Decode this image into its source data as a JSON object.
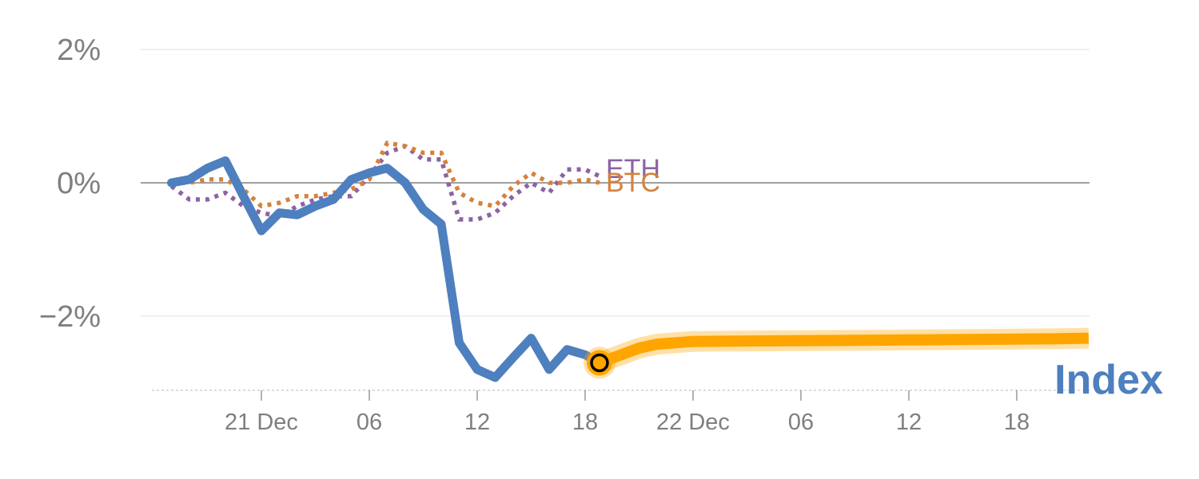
{
  "chart_data": {
    "type": "line",
    "title": "",
    "xlabel": "",
    "ylabel": "",
    "ylim": [
      -3.1,
      2.0
    ],
    "y_ticks": [
      {
        "value": 2,
        "label": "2%"
      },
      {
        "value": 0,
        "label": "0%"
      },
      {
        "value": -2,
        "label": "−2%"
      }
    ],
    "x_ticks": [
      {
        "value": 6,
        "label": "21 Dec"
      },
      {
        "value": 12,
        "label": "06"
      },
      {
        "value": 18,
        "label": "12"
      },
      {
        "value": 24,
        "label": "18"
      },
      {
        "value": 30,
        "label": "22 Dec"
      },
      {
        "value": 36,
        "label": "06"
      },
      {
        "value": 42,
        "label": "12"
      },
      {
        "value": 48,
        "label": "18"
      }
    ],
    "xlim": [
      0,
      52
    ],
    "grid": true,
    "series": [
      {
        "name": "Index",
        "color": "#4e7fbf",
        "style": "solid",
        "points": [
          [
            1,
            0.0
          ],
          [
            2,
            0.05
          ],
          [
            3,
            0.22
          ],
          [
            4,
            0.33
          ],
          [
            5,
            -0.2
          ],
          [
            6,
            -0.72
          ],
          [
            7,
            -0.45
          ],
          [
            8,
            -0.48
          ],
          [
            9,
            -0.35
          ],
          [
            10,
            -0.25
          ],
          [
            11,
            0.05
          ],
          [
            12,
            0.15
          ],
          [
            13,
            0.22
          ],
          [
            14,
            0.0
          ],
          [
            15,
            -0.4
          ],
          [
            16,
            -0.62
          ],
          [
            17,
            -2.4
          ],
          [
            18,
            -2.8
          ],
          [
            19,
            -2.92
          ],
          [
            20,
            -2.62
          ],
          [
            21,
            -2.33
          ],
          [
            22,
            -2.8
          ],
          [
            23,
            -2.5
          ],
          [
            24,
            -2.58
          ],
          [
            24.8,
            -2.7
          ]
        ]
      },
      {
        "name": "ETH",
        "color": "#8c63a4",
        "style": "dotted",
        "points": [
          [
            1,
            -0.05
          ],
          [
            2,
            -0.25
          ],
          [
            3,
            -0.25
          ],
          [
            4,
            -0.15
          ],
          [
            5,
            -0.35
          ],
          [
            6,
            -0.45
          ],
          [
            7,
            -0.5
          ],
          [
            8,
            -0.35
          ],
          [
            9,
            -0.25
          ],
          [
            10,
            -0.2
          ],
          [
            11,
            -0.2
          ],
          [
            12,
            0.1
          ],
          [
            13,
            0.45
          ],
          [
            14,
            0.55
          ],
          [
            15,
            0.35
          ],
          [
            16,
            0.35
          ],
          [
            17,
            -0.55
          ],
          [
            18,
            -0.55
          ],
          [
            19,
            -0.45
          ],
          [
            20,
            -0.2
          ],
          [
            21,
            0.0
          ],
          [
            22,
            -0.15
          ],
          [
            23,
            0.2
          ],
          [
            24,
            0.2
          ],
          [
            24.8,
            0.1
          ]
        ]
      },
      {
        "name": "BTC",
        "color": "#d5823c",
        "style": "dotted",
        "points": [
          [
            1,
            0.0
          ],
          [
            2,
            0.0
          ],
          [
            3,
            0.05
          ],
          [
            4,
            0.05
          ],
          [
            5,
            -0.1
          ],
          [
            6,
            -0.35
          ],
          [
            7,
            -0.3
          ],
          [
            8,
            -0.2
          ],
          [
            9,
            -0.2
          ],
          [
            10,
            -0.15
          ],
          [
            11,
            -0.1
          ],
          [
            12,
            0.05
          ],
          [
            13,
            0.6
          ],
          [
            14,
            0.55
          ],
          [
            15,
            0.45
          ],
          [
            16,
            0.45
          ],
          [
            17,
            -0.15
          ],
          [
            18,
            -0.3
          ],
          [
            19,
            -0.35
          ],
          [
            20,
            -0.05
          ],
          [
            21,
            0.15
          ],
          [
            22,
            0.0
          ],
          [
            23,
            0.0
          ],
          [
            24,
            0.05
          ],
          [
            24.8,
            0.0
          ]
        ]
      },
      {
        "name": "Index forecast",
        "color": "#ffa500",
        "style": "band",
        "points": [
          [
            24.8,
            -2.7
          ],
          [
            26,
            -2.58
          ],
          [
            27,
            -2.48
          ],
          [
            28,
            -2.42
          ],
          [
            30,
            -2.38
          ],
          [
            35,
            -2.37
          ],
          [
            40,
            -2.36
          ],
          [
            45,
            -2.35
          ],
          [
            50,
            -2.34
          ],
          [
            52,
            -2.33
          ]
        ]
      }
    ],
    "marker": {
      "x": 24.8,
      "y": -2.7
    },
    "labels": {
      "eth": "ETH",
      "btc": "BTC",
      "index": "Index"
    }
  }
}
